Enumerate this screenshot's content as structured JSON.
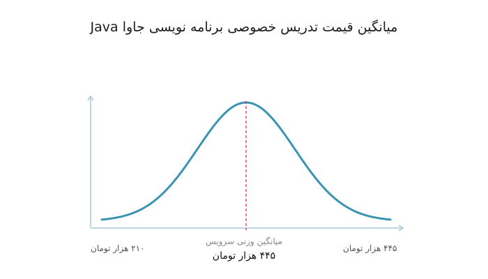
{
  "title": "میانگین قیمت تدریس خصوصی برنامه نویسی جاوا Java",
  "colors": {
    "curve": "#3a93b3",
    "axis": "#a7c9d9",
    "mean_line": "#d81b60"
  },
  "chart_data": {
    "type": "line",
    "x_min_label": "۲۱۰ هزار تومان",
    "x_max_label": "۴۴۵ هزار تومان",
    "mean_caption": "میانگین وزنی سرویس",
    "mean_label": "۴۴۵ هزار تومان",
    "curve_shape": "normal-distribution",
    "grid": false
  }
}
